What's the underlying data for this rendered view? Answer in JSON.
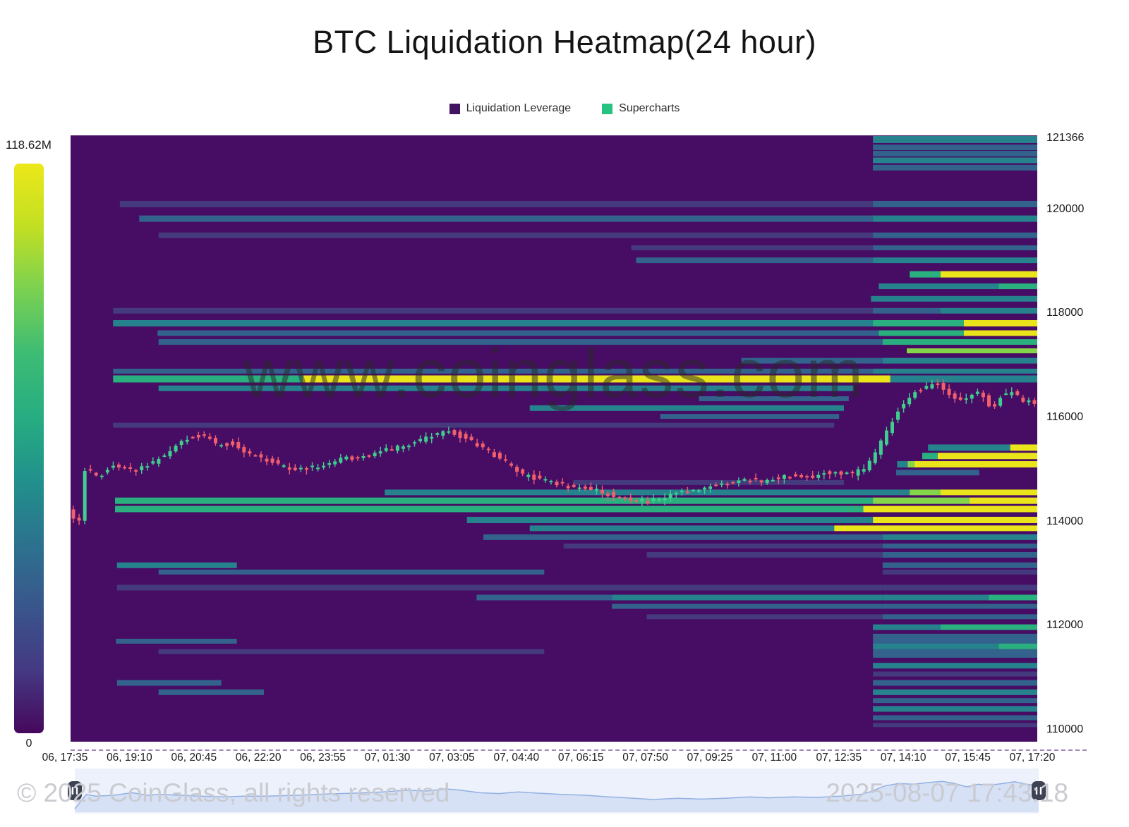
{
  "title": "BTC Liquidation Heatmap(24 hour)",
  "legend": {
    "items": [
      {
        "label": "Liquidation Leverage",
        "color": "#42135f"
      },
      {
        "label": "Supercharts",
        "color": "#26c281"
      }
    ]
  },
  "colorbar": {
    "max_label": "118.62M",
    "min_label": "0",
    "gradient": [
      "#ece819",
      "#c2df23",
      "#7ad151",
      "#3dbc74",
      "#27ad81",
      "#21918c",
      "#2c728e",
      "#39568c",
      "#443983",
      "#46085c"
    ]
  },
  "watermark": {
    "center": "www.coinglass.com",
    "copyright": "© 2025 CoinGlass, all rights reserved",
    "timestamp": "2025-08-07 17:43:18"
  },
  "chart_data": {
    "type": "heatmap",
    "title": "BTC Liquidation Heatmap(24 hour)",
    "background": "#470c63",
    "price_axis": {
      "min": 110000,
      "max": 121366,
      "tick_labels": [
        "121366",
        "120000",
        "118000",
        "116000",
        "114000",
        "112000",
        "110000"
      ],
      "tick_values": [
        121366,
        120000,
        118000,
        116000,
        114000,
        112000,
        110000
      ]
    },
    "time_axis": {
      "tick_labels": [
        "06, 17:35",
        "06, 19:10",
        "06, 20:45",
        "06, 22:20",
        "06, 23:55",
        "07, 01:30",
        "07, 03:05",
        "07, 04:40",
        "07, 06:15",
        "07, 07:50",
        "07, 09:25",
        "07, 11:00",
        "07, 12:35",
        "07, 14:10",
        "07, 15:45",
        "07, 17:20"
      ]
    },
    "palette": [
      "",
      "#443a7d",
      "#33628d",
      "#26838e",
      "#2ab07f",
      "#85d54a",
      "#eae51a"
    ],
    "candle_colors": {
      "up": "#3ecf8f",
      "down": "#f05f6d"
    },
    "bands": [
      [
        121340,
        10,
        [
          [
            0.83,
            3
          ]
        ]
      ],
      [
        121190,
        8,
        [
          [
            0.83,
            2
          ]
        ]
      ],
      [
        121070,
        8,
        [
          [
            0.83,
            2
          ]
        ]
      ],
      [
        120940,
        8,
        [
          [
            0.83,
            3
          ]
        ]
      ],
      [
        120800,
        8,
        [
          [
            0.83,
            2
          ]
        ]
      ],
      [
        120100,
        9,
        [
          [
            0.051,
            1
          ],
          [
            0.83,
            2
          ]
        ]
      ],
      [
        119820,
        9,
        [
          [
            0.071,
            2
          ],
          [
            0.83,
            3
          ]
        ]
      ],
      [
        119500,
        8,
        [
          [
            0.091,
            1
          ],
          [
            0.83,
            2
          ]
        ]
      ],
      [
        119260,
        7,
        [
          [
            0.58,
            1
          ],
          [
            0.83,
            2
          ]
        ]
      ],
      [
        119020,
        8,
        [
          [
            0.585,
            2
          ],
          [
            0.83,
            3
          ]
        ]
      ],
      [
        118750,
        9,
        [
          [
            0.868,
            4
          ],
          [
            0.9,
            6
          ]
        ]
      ],
      [
        118520,
        8,
        [
          [
            0.836,
            3
          ],
          [
            0.96,
            4
          ]
        ]
      ],
      [
        118280,
        8,
        [
          [
            0.828,
            3
          ]
        ]
      ],
      [
        118050,
        8,
        [
          [
            0.044,
            1
          ],
          [
            0.83,
            2
          ],
          [
            0.9,
            3
          ]
        ]
      ],
      [
        117810,
        9,
        [
          [
            0.044,
            3
          ],
          [
            0.83,
            4
          ],
          [
            0.924,
            6
          ]
        ]
      ],
      [
        117620,
        8,
        [
          [
            0.09,
            2
          ],
          [
            0.836,
            4
          ],
          [
            0.924,
            6
          ]
        ]
      ],
      [
        117450,
        8,
        [
          [
            0.091,
            2
          ],
          [
            0.84,
            4
          ]
        ]
      ],
      [
        117280,
        7,
        [
          [
            0.865,
            5
          ]
        ]
      ],
      [
        117090,
        8,
        [
          [
            0.694,
            2
          ],
          [
            0.84,
            3
          ]
        ]
      ],
      [
        116890,
        7,
        [
          [
            0.044,
            2
          ],
          [
            0.83,
            3
          ]
        ]
      ],
      [
        116740,
        10,
        [
          [
            0.044,
            4
          ],
          [
            0.24,
            6
          ],
          [
            0.8,
            6
          ],
          [
            0.848,
            3
          ]
        ]
      ],
      [
        116560,
        8,
        [
          [
            0.091,
            3
          ],
          [
            0.6,
            3
          ],
          [
            0.81,
            0
          ]
        ]
      ],
      [
        116360,
        7,
        [
          [
            0.65,
            2
          ],
          [
            0.805,
            0
          ]
        ]
      ],
      [
        116180,
        8,
        [
          [
            0.475,
            3
          ],
          [
            0.8,
            0
          ]
        ]
      ],
      [
        116020,
        7,
        [
          [
            0.61,
            2
          ],
          [
            0.795,
            0
          ]
        ]
      ],
      [
        115850,
        7,
        [
          [
            0.044,
            1
          ],
          [
            0.79,
            0
          ]
        ]
      ],
      [
        115420,
        9,
        [
          [
            0.887,
            3
          ],
          [
            0.972,
            6
          ]
        ]
      ],
      [
        115260,
        9,
        [
          [
            0.881,
            4
          ],
          [
            0.897,
            6
          ]
        ]
      ],
      [
        115100,
        9,
        [
          [
            0.855,
            3
          ],
          [
            0.866,
            5
          ],
          [
            0.873,
            6
          ]
        ]
      ],
      [
        114940,
        8,
        [
          [
            0.854,
            2
          ],
          [
            0.94,
            0
          ]
        ]
      ],
      [
        114750,
        7,
        [
          [
            0.52,
            1
          ],
          [
            0.8,
            0
          ]
        ]
      ],
      [
        114560,
        8,
        [
          [
            0.325,
            3
          ],
          [
            0.868,
            5
          ],
          [
            0.9,
            6
          ]
        ]
      ],
      [
        114400,
        9,
        [
          [
            0.046,
            4
          ],
          [
            0.83,
            5
          ],
          [
            0.93,
            6
          ]
        ]
      ],
      [
        114240,
        9,
        [
          [
            0.046,
            4
          ],
          [
            0.55,
            4
          ],
          [
            0.82,
            6
          ]
        ]
      ],
      [
        114030,
        9,
        [
          [
            0.41,
            3
          ],
          [
            0.83,
            6
          ]
        ]
      ],
      [
        113870,
        8,
        [
          [
            0.475,
            3
          ],
          [
            0.79,
            6
          ]
        ]
      ],
      [
        113700,
        8,
        [
          [
            0.427,
            2
          ],
          [
            0.84,
            3
          ]
        ]
      ],
      [
        113530,
        7,
        [
          [
            0.51,
            1
          ],
          [
            0.84,
            2
          ]
        ]
      ],
      [
        113360,
        8,
        [
          [
            0.596,
            1
          ],
          [
            0.84,
            2
          ]
        ]
      ],
      [
        113160,
        8,
        [
          [
            0.048,
            3
          ],
          [
            0.172,
            0
          ],
          [
            0.84,
            2
          ]
        ]
      ],
      [
        113030,
        7,
        [
          [
            0.091,
            2
          ],
          [
            0.49,
            0
          ],
          [
            0.84,
            1
          ]
        ]
      ],
      [
        112730,
        8,
        [
          [
            0.048,
            1
          ],
          [
            0.84,
            1
          ]
        ]
      ],
      [
        112540,
        8,
        [
          [
            0.42,
            2
          ],
          [
            0.56,
            3
          ],
          [
            0.84,
            3
          ],
          [
            0.95,
            4
          ]
        ]
      ],
      [
        112370,
        7,
        [
          [
            0.56,
            2
          ],
          [
            0.84,
            2
          ]
        ]
      ],
      [
        112170,
        7,
        [
          [
            0.596,
            1
          ],
          [
            0.84,
            2
          ]
        ]
      ],
      [
        111970,
        8,
        [
          [
            0.83,
            3
          ],
          [
            0.9,
            4
          ]
        ]
      ],
      [
        111790,
        8,
        [
          [
            0.83,
            2
          ]
        ]
      ],
      [
        111700,
        7,
        [
          [
            0.047,
            2
          ],
          [
            0.172,
            0
          ],
          [
            0.83,
            2
          ]
        ]
      ],
      [
        111600,
        8,
        [
          [
            0.83,
            3
          ],
          [
            0.96,
            4
          ]
        ]
      ],
      [
        111500,
        7,
        [
          [
            0.091,
            1
          ],
          [
            0.49,
            0
          ],
          [
            0.83,
            2
          ]
        ]
      ],
      [
        111430,
        7,
        [
          [
            0.83,
            2
          ]
        ]
      ],
      [
        111230,
        8,
        [
          [
            0.83,
            3
          ]
        ]
      ],
      [
        111070,
        7,
        [
          [
            0.83,
            1
          ]
        ]
      ],
      [
        110900,
        8,
        [
          [
            0.048,
            2
          ],
          [
            0.156,
            0
          ],
          [
            0.83,
            2
          ]
        ]
      ],
      [
        110720,
        8,
        [
          [
            0.091,
            2
          ],
          [
            0.2,
            0
          ],
          [
            0.83,
            3
          ]
        ]
      ],
      [
        110560,
        7,
        [
          [
            0.83,
            2
          ]
        ]
      ],
      [
        110400,
        8,
        [
          [
            0.83,
            3
          ]
        ]
      ],
      [
        110230,
        7,
        [
          [
            0.83,
            2
          ]
        ]
      ],
      [
        110090,
        6,
        [
          [
            0.83,
            1
          ]
        ]
      ]
    ],
    "price_path": [
      [
        0.0,
        114250
      ],
      [
        0.008,
        113950
      ],
      [
        0.013,
        114050
      ],
      [
        0.018,
        115050
      ],
      [
        0.03,
        114850
      ],
      [
        0.05,
        115100
      ],
      [
        0.068,
        114950
      ],
      [
        0.085,
        115100
      ],
      [
        0.105,
        115350
      ],
      [
        0.125,
        115600
      ],
      [
        0.14,
        115680
      ],
      [
        0.155,
        115450
      ],
      [
        0.17,
        115520
      ],
      [
        0.19,
        115280
      ],
      [
        0.21,
        115150
      ],
      [
        0.235,
        114980
      ],
      [
        0.255,
        115050
      ],
      [
        0.285,
        115200
      ],
      [
        0.315,
        115300
      ],
      [
        0.345,
        115450
      ],
      [
        0.37,
        115600
      ],
      [
        0.39,
        115750
      ],
      [
        0.41,
        115620
      ],
      [
        0.435,
        115350
      ],
      [
        0.455,
        115120
      ],
      [
        0.47,
        114900
      ],
      [
        0.495,
        114780
      ],
      [
        0.52,
        114650
      ],
      [
        0.545,
        114600
      ],
      [
        0.57,
        114480
      ],
      [
        0.6,
        114380
      ],
      [
        0.62,
        114480
      ],
      [
        0.65,
        114620
      ],
      [
        0.675,
        114700
      ],
      [
        0.7,
        114820
      ],
      [
        0.72,
        114760
      ],
      [
        0.745,
        114900
      ],
      [
        0.765,
        114860
      ],
      [
        0.79,
        114960
      ],
      [
        0.81,
        114900
      ],
      [
        0.826,
        115050
      ],
      [
        0.838,
        115400
      ],
      [
        0.85,
        115850
      ],
      [
        0.862,
        116250
      ],
      [
        0.875,
        116480
      ],
      [
        0.888,
        116600
      ],
      [
        0.9,
        116680
      ],
      [
        0.912,
        116420
      ],
      [
        0.925,
        116320
      ],
      [
        0.938,
        116500
      ],
      [
        0.948,
        116380
      ],
      [
        0.956,
        116150
      ],
      [
        0.965,
        116420
      ],
      [
        0.978,
        116480
      ],
      [
        0.988,
        116300
      ],
      [
        1.0,
        116280
      ]
    ],
    "navigator_path": [
      [
        0.0,
        0.08
      ],
      [
        0.012,
        0.42
      ],
      [
        0.022,
        0.38
      ],
      [
        0.04,
        0.4
      ],
      [
        0.06,
        0.46
      ],
      [
        0.075,
        0.4
      ],
      [
        0.09,
        0.42
      ],
      [
        0.11,
        0.4
      ],
      [
        0.13,
        0.38
      ],
      [
        0.155,
        0.36
      ],
      [
        0.175,
        0.38
      ],
      [
        0.2,
        0.38
      ],
      [
        0.23,
        0.4
      ],
      [
        0.26,
        0.43
      ],
      [
        0.29,
        0.45
      ],
      [
        0.32,
        0.48
      ],
      [
        0.345,
        0.52
      ],
      [
        0.365,
        0.5
      ],
      [
        0.385,
        0.55
      ],
      [
        0.4,
        0.52
      ],
      [
        0.42,
        0.46
      ],
      [
        0.44,
        0.44
      ],
      [
        0.46,
        0.48
      ],
      [
        0.48,
        0.45
      ],
      [
        0.505,
        0.42
      ],
      [
        0.53,
        0.4
      ],
      [
        0.555,
        0.36
      ],
      [
        0.58,
        0.33
      ],
      [
        0.6,
        0.3
      ],
      [
        0.625,
        0.33
      ],
      [
        0.65,
        0.31
      ],
      [
        0.675,
        0.33
      ],
      [
        0.7,
        0.36
      ],
      [
        0.72,
        0.34
      ],
      [
        0.745,
        0.36
      ],
      [
        0.77,
        0.35
      ],
      [
        0.795,
        0.38
      ],
      [
        0.815,
        0.42
      ],
      [
        0.825,
        0.48
      ],
      [
        0.84,
        0.62
      ],
      [
        0.855,
        0.68
      ],
      [
        0.87,
        0.66
      ],
      [
        0.885,
        0.7
      ],
      [
        0.9,
        0.73
      ],
      [
        0.913,
        0.68
      ],
      [
        0.925,
        0.6
      ],
      [
        0.937,
        0.66
      ],
      [
        0.95,
        0.64
      ],
      [
        0.963,
        0.68
      ],
      [
        0.975,
        0.72
      ],
      [
        0.988,
        0.66
      ],
      [
        1.0,
        0.63
      ]
    ],
    "navigator_colors": {
      "panel": "#edf1fb",
      "fill": "#d7e1f6",
      "line": "#91b0e2",
      "handle": "#3e4354"
    }
  }
}
